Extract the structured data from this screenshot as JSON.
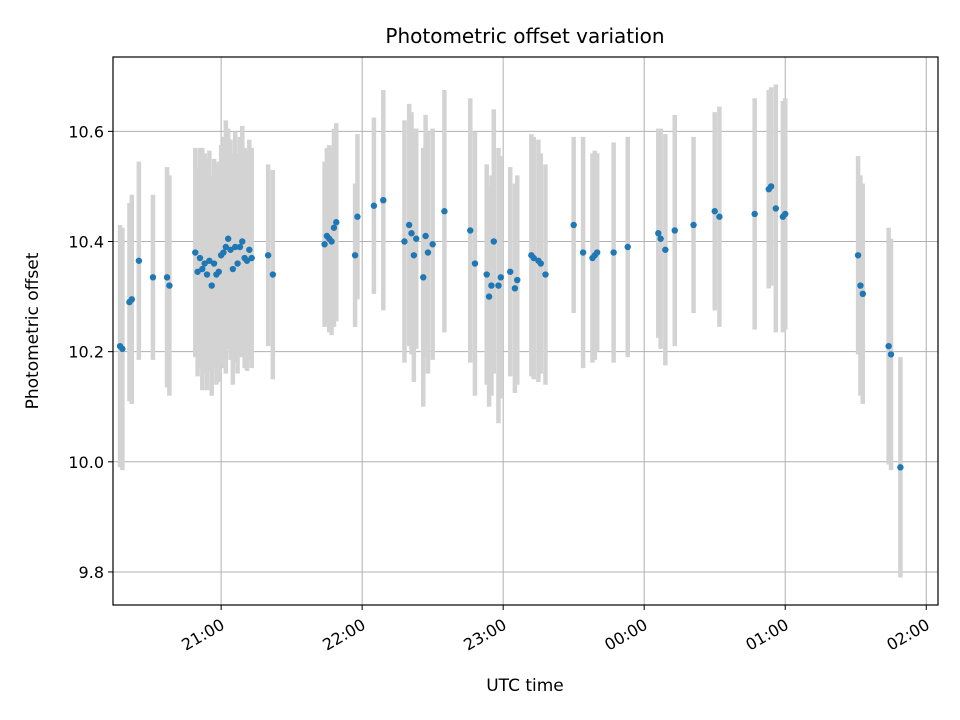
{
  "chart_data": {
    "type": "scatter",
    "title": "Photometric offset variation",
    "xlabel": "UTC time",
    "ylabel": "Photometric offset",
    "x_ticks": [
      "21:00",
      "22:00",
      "23:00",
      "00:00",
      "01:00",
      "02:00"
    ],
    "y_ticks": [
      "9.8",
      "10.0",
      "10.2",
      "10.4",
      "10.6"
    ],
    "xlim": [
      "20:14",
      "02:05"
    ],
    "ylim": [
      9.74,
      10.735
    ],
    "grid": true,
    "colors": {
      "points": "#1f77b4",
      "errorbars": "#d3d3d3",
      "grid": "#b0b0b0"
    },
    "series": [
      {
        "points": [
          {
            "x": "20:17",
            "y": 10.21,
            "err": 0.22
          },
          {
            "x": "20:18",
            "y": 10.205,
            "err": 0.22
          },
          {
            "x": "20:21",
            "y": 10.29,
            "err": 0.18
          },
          {
            "x": "20:22",
            "y": 10.295,
            "err": 0.19
          },
          {
            "x": "20:25",
            "y": 10.365,
            "err": 0.18
          },
          {
            "x": "20:31",
            "y": 10.335,
            "err": 0.15
          },
          {
            "x": "20:37",
            "y": 10.335,
            "err": 0.2
          },
          {
            "x": "20:38",
            "y": 10.32,
            "err": 0.2
          },
          {
            "x": "20:49",
            "y": 10.38,
            "err": 0.19
          },
          {
            "x": "20:50",
            "y": 10.345,
            "err": 0.19
          },
          {
            "x": "20:51",
            "y": 10.37,
            "err": 0.2
          },
          {
            "x": "20:52",
            "y": 10.35,
            "err": 0.22
          },
          {
            "x": "20:53",
            "y": 10.36,
            "err": 0.2
          },
          {
            "x": "20:54",
            "y": 10.34,
            "err": 0.21
          },
          {
            "x": "20:55",
            "y": 10.365,
            "err": 0.2
          },
          {
            "x": "20:56",
            "y": 10.32,
            "err": 0.2
          },
          {
            "x": "20:57",
            "y": 10.36,
            "err": 0.19
          },
          {
            "x": "20:58",
            "y": 10.34,
            "err": 0.2
          },
          {
            "x": "20:59",
            "y": 10.345,
            "err": 0.2
          },
          {
            "x": "21:00",
            "y": 10.375,
            "err": 0.2
          },
          {
            "x": "21:01",
            "y": 10.38,
            "err": 0.21
          },
          {
            "x": "21:02",
            "y": 10.39,
            "err": 0.23
          },
          {
            "x": "21:03",
            "y": 10.405,
            "err": 0.2
          },
          {
            "x": "21:04",
            "y": 10.385,
            "err": 0.2
          },
          {
            "x": "21:05",
            "y": 10.35,
            "err": 0.21
          },
          {
            "x": "21:06",
            "y": 10.39,
            "err": 0.21
          },
          {
            "x": "21:07",
            "y": 10.36,
            "err": 0.2
          },
          {
            "x": "21:08",
            "y": 10.39,
            "err": 0.2
          },
          {
            "x": "21:09",
            "y": 10.4,
            "err": 0.21
          },
          {
            "x": "21:10",
            "y": 10.37,
            "err": 0.2
          },
          {
            "x": "21:11",
            "y": 10.365,
            "err": 0.2
          },
          {
            "x": "21:12",
            "y": 10.385,
            "err": 0.2
          },
          {
            "x": "21:13",
            "y": 10.37,
            "err": 0.2
          },
          {
            "x": "21:20",
            "y": 10.375,
            "err": 0.165
          },
          {
            "x": "21:22",
            "y": 10.34,
            "err": 0.19
          },
          {
            "x": "21:44",
            "y": 10.395,
            "err": 0.15
          },
          {
            "x": "21:45",
            "y": 10.41,
            "err": 0.16
          },
          {
            "x": "21:46",
            "y": 10.405,
            "err": 0.17
          },
          {
            "x": "21:47",
            "y": 10.4,
            "err": 0.17
          },
          {
            "x": "21:48",
            "y": 10.425,
            "err": 0.18
          },
          {
            "x": "21:49",
            "y": 10.435,
            "err": 0.18
          },
          {
            "x": "21:57",
            "y": 10.375,
            "err": 0.13
          },
          {
            "x": "21:58",
            "y": 10.445,
            "err": 0.15
          },
          {
            "x": "22:05",
            "y": 10.465,
            "err": 0.16
          },
          {
            "x": "22:09",
            "y": 10.475,
            "err": 0.2
          },
          {
            "x": "22:18",
            "y": 10.4,
            "err": 0.22
          },
          {
            "x": "22:20",
            "y": 10.43,
            "err": 0.22
          },
          {
            "x": "22:21",
            "y": 10.415,
            "err": 0.22
          },
          {
            "x": "22:22",
            "y": 10.375,
            "err": 0.23
          },
          {
            "x": "22:23",
            "y": 10.405,
            "err": 0.2
          },
          {
            "x": "22:26",
            "y": 10.335,
            "err": 0.235
          },
          {
            "x": "22:27",
            "y": 10.41,
            "err": 0.22
          },
          {
            "x": "22:28",
            "y": 10.38,
            "err": 0.22
          },
          {
            "x": "22:30",
            "y": 10.395,
            "err": 0.21
          },
          {
            "x": "22:35",
            "y": 10.455,
            "err": 0.22
          },
          {
            "x": "22:46",
            "y": 10.42,
            "err": 0.24
          },
          {
            "x": "22:48",
            "y": 10.36,
            "err": 0.24
          },
          {
            "x": "22:53",
            "y": 10.34,
            "err": 0.2
          },
          {
            "x": "22:54",
            "y": 10.3,
            "err": 0.2
          },
          {
            "x": "22:55",
            "y": 10.32,
            "err": 0.2
          },
          {
            "x": "22:56",
            "y": 10.4,
            "err": 0.24
          },
          {
            "x": "22:58",
            "y": 10.32,
            "err": 0.25
          },
          {
            "x": "22:59",
            "y": 10.335,
            "err": 0.22
          },
          {
            "x": "23:03",
            "y": 10.345,
            "err": 0.19
          },
          {
            "x": "23:05",
            "y": 10.315,
            "err": 0.19
          },
          {
            "x": "23:06",
            "y": 10.33,
            "err": 0.19
          },
          {
            "x": "23:12",
            "y": 10.375,
            "err": 0.22
          },
          {
            "x": "23:13",
            "y": 10.37,
            "err": 0.22
          },
          {
            "x": "23:15",
            "y": 10.365,
            "err": 0.22
          },
          {
            "x": "23:16",
            "y": 10.36,
            "err": 0.2
          },
          {
            "x": "23:18",
            "y": 10.34,
            "err": 0.2
          },
          {
            "x": "23:30",
            "y": 10.43,
            "err": 0.16
          },
          {
            "x": "23:34",
            "y": 10.38,
            "err": 0.21
          },
          {
            "x": "23:38",
            "y": 10.37,
            "err": 0.19
          },
          {
            "x": "23:39",
            "y": 10.375,
            "err": 0.19
          },
          {
            "x": "23:40",
            "y": 10.38,
            "err": 0.18
          },
          {
            "x": "23:47",
            "y": 10.38,
            "err": 0.2
          },
          {
            "x": "23:53",
            "y": 10.39,
            "err": 0.2
          },
          {
            "x": "00:06",
            "y": 10.415,
            "err": 0.19
          },
          {
            "x": "00:07",
            "y": 10.405,
            "err": 0.2
          },
          {
            "x": "00:09",
            "y": 10.385,
            "err": 0.21
          },
          {
            "x": "00:13",
            "y": 10.42,
            "err": 0.21
          },
          {
            "x": "00:21",
            "y": 10.43,
            "err": 0.16
          },
          {
            "x": "00:30",
            "y": 10.455,
            "err": 0.18
          },
          {
            "x": "00:32",
            "y": 10.445,
            "err": 0.2
          },
          {
            "x": "00:47",
            "y": 10.45,
            "err": 0.21
          },
          {
            "x": "00:53",
            "y": 10.495,
            "err": 0.18
          },
          {
            "x": "00:54",
            "y": 10.5,
            "err": 0.18
          },
          {
            "x": "00:56",
            "y": 10.46,
            "err": 0.225
          },
          {
            "x": "00:59",
            "y": 10.445,
            "err": 0.21
          },
          {
            "x": "01:00",
            "y": 10.45,
            "err": 0.21
          },
          {
            "x": "01:31",
            "y": 10.375,
            "err": 0.18
          },
          {
            "x": "01:32",
            "y": 10.32,
            "err": 0.2
          },
          {
            "x": "01:33",
            "y": 10.305,
            "err": 0.2
          },
          {
            "x": "01:44",
            "y": 10.21,
            "err": 0.215
          },
          {
            "x": "01:45",
            "y": 10.195,
            "err": 0.21
          },
          {
            "x": "01:49",
            "y": 9.99,
            "err": 0.2
          }
        ]
      }
    ]
  }
}
